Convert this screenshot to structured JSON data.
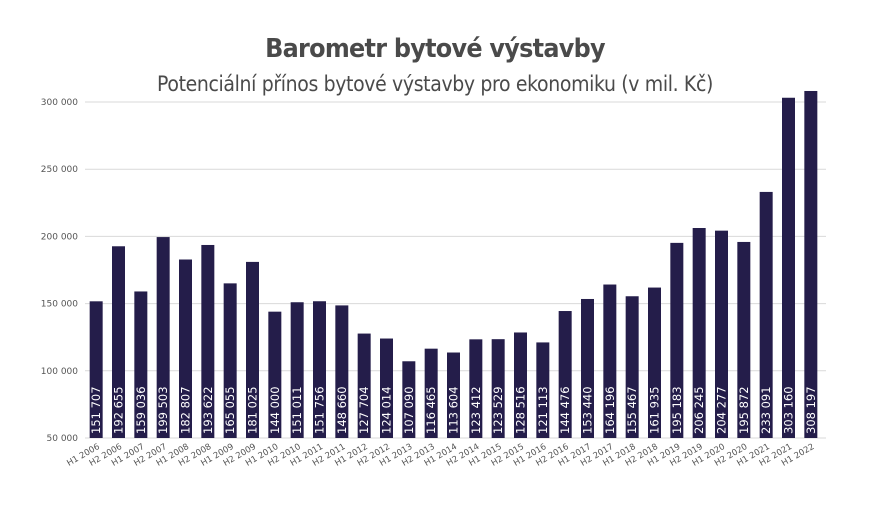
{
  "chart_data": {
    "type": "bar",
    "title": "Barometr bytové výstavby",
    "subtitle": "Potenciální přínos bytové výstavby pro ekonomiku (v mil. Kč)",
    "xlabel": "",
    "ylabel": "",
    "ylim": [
      50000,
      310000
    ],
    "yticks": [
      50000,
      100000,
      150000,
      200000,
      250000,
      300000
    ],
    "ytick_labels": [
      "50 000",
      "100 000",
      "150 000",
      "200 000",
      "250 000",
      "300 000"
    ],
    "grid": true,
    "bar_color": "#241d4a",
    "label_color": "#ffffff",
    "categories": [
      "H1 2006",
      "H2 2006",
      "H1 2007",
      "H2 2007",
      "H1 2008",
      "H2 2008",
      "H1 2009",
      "H2 2009",
      "H1 2010",
      "H2 2010",
      "H1 2011",
      "H2 2011",
      "H1 2012",
      "H2 2012",
      "H1 2013",
      "H2 2013",
      "H1 2014",
      "H2 2014",
      "H1 2015",
      "H2 2015",
      "H1 2016",
      "H2 2016",
      "H1 2017",
      "H2 2017",
      "H1 2018",
      "H2 2018",
      "H1 2019",
      "H2 2019",
      "H1 2020",
      "H2 2020",
      "H1 2021",
      "H2 2021",
      "H1 2022"
    ],
    "values": [
      151707,
      192655,
      159036,
      199503,
      182807,
      193622,
      165055,
      181025,
      144000,
      151011,
      151756,
      148660,
      127704,
      124014,
      107090,
      116465,
      113604,
      123412,
      123529,
      128516,
      121113,
      144476,
      153440,
      164196,
      155467,
      161935,
      195183,
      206245,
      204277,
      195872,
      233091,
      303160,
      308197
    ],
    "value_labels": [
      "151 707",
      "192 655",
      "159 036",
      "199 503",
      "182 807",
      "193 622",
      "165 055",
      "181 025",
      "144 000",
      "151 011",
      "151 756",
      "148 660",
      "127 704",
      "124 014",
      "107 090",
      "116 465",
      "113 604",
      "123 412",
      "123 529",
      "128 516",
      "121 113",
      "144 476",
      "153 440",
      "164 196",
      "155 467",
      "161 935",
      "195 183",
      "206 245",
      "204 277",
      "195 872",
      "233 091",
      "303 160",
      "308 197"
    ]
  }
}
